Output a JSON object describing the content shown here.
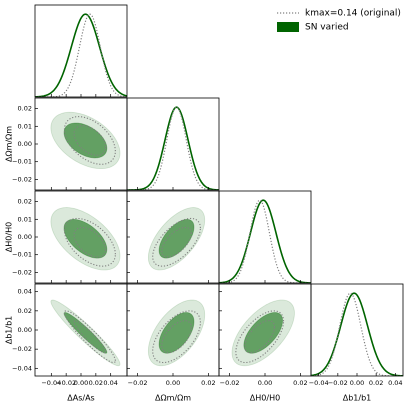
{
  "chart_data": {
    "type": "corner",
    "parameters": [
      {
        "label": "ΔAs/As",
        "lim": [
          -0.062,
          0.062
        ],
        "xticks": [
          {
            "value": -0.04,
            "label": "−0.04"
          },
          {
            "value": -0.02,
            "label": "−0.02"
          },
          {
            "value": 0,
            "label": "0.00"
          },
          0.02,
          0.04
        ]
      },
      {
        "label": "ΔΩm/Ωm",
        "lim": [
          -0.026,
          0.026
        ],
        "xticks": [
          {
            "value": -0.02,
            "label": "−0.02"
          },
          {
            "value": 0,
            "label": "0.00"
          },
          0.02
        ],
        "yticks": [
          0.02,
          0.01,
          {
            "value": 0,
            "label": "0.00"
          },
          {
            "value": -0.01,
            "label": "−0.01"
          },
          {
            "value": -0.02,
            "label": "−0.02"
          }
        ]
      },
      {
        "label": "ΔH0/H0",
        "lim": [
          -0.026,
          0.026
        ],
        "xticks": [
          {
            "value": -0.02,
            "label": "−0.02"
          },
          {
            "value": 0,
            "label": "0.00"
          },
          0.02
        ],
        "yticks": [
          0.02,
          0.01,
          {
            "value": 0,
            "label": "0.00"
          },
          {
            "value": -0.01,
            "label": "−0.01"
          },
          {
            "value": -0.02,
            "label": "−0.02"
          }
        ]
      },
      {
        "label": "Δb1/b1",
        "lim": [
          -0.048,
          0.048
        ],
        "xticks": [
          {
            "value": -0.04,
            "label": "−0.04"
          },
          {
            "value": -0.02,
            "label": "−0.02"
          },
          {
            "value": 0,
            "label": "0.00"
          },
          0.02,
          0.04
        ],
        "yticks": [
          0.04,
          0.02,
          {
            "value": 0,
            "label": "0.00"
          },
          {
            "value": -0.02,
            "label": "−0.02"
          },
          {
            "value": -0.04,
            "label": "−0.04"
          }
        ]
      }
    ],
    "series": [
      {
        "name": "kmax=0.14 (original)",
        "color": "#808080",
        "style": "dotted",
        "means": [
          0.012,
          0.002,
          -0.003,
          -0.007
        ],
        "sigmas": [
          0.014,
          0.0055,
          0.0055,
          0.011
        ],
        "correlations": [
          [
            -0.45
          ],
          [
            -0.5,
            0.6
          ],
          [
            -0.93,
            0.55,
            0.6
          ]
        ]
      },
      {
        "name": "SN varied",
        "color": "#006400",
        "style": "filled",
        "means": [
          0.006,
          0.002,
          -0.001,
          -0.003
        ],
        "sigmas": [
          0.019,
          0.0065,
          0.0072,
          0.014
        ],
        "correlations": [
          [
            -0.45
          ],
          [
            -0.55,
            0.6
          ],
          [
            -0.95,
            0.55,
            0.6
          ]
        ]
      }
    ]
  }
}
